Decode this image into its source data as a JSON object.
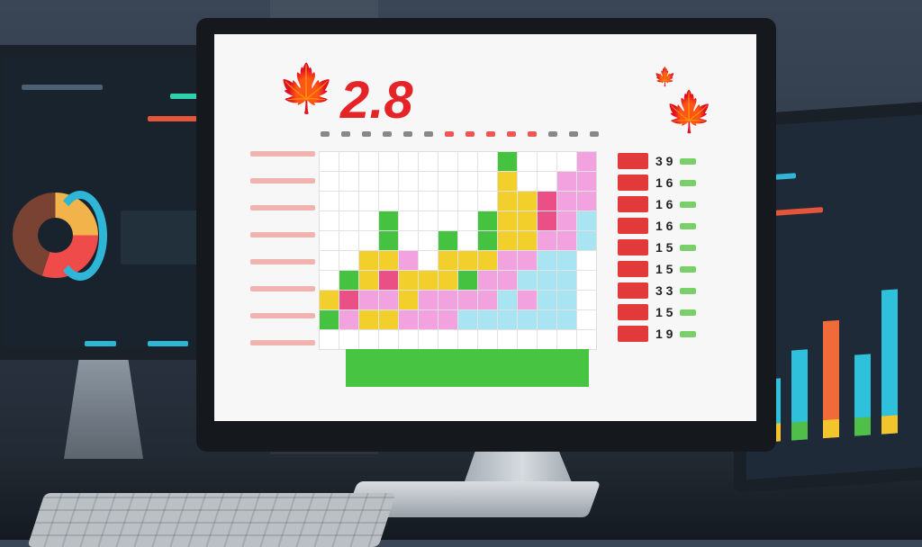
{
  "scene": "three monitors on a desk",
  "center_monitor": {
    "headline_value": "2.8",
    "grid_colors": {
      "w": "#ffffff",
      "g": "#45c23f",
      "y": "#f3cf2b",
      "p": "#f2a3df",
      "r": "#ea4f86",
      "b": "#a9e4f2"
    },
    "grid_rows": [
      "wwwwwwwwwgwwwp",
      "wwwwwwwwwywwpp",
      "wwwwwwwwwyyrpp",
      "wwwgwwwwgyyrpb",
      "wwwgwwgwgyyppb",
      "wwyypwyyyppbbw",
      "wgyryyygppbbbw",
      "yrppyppppbpbbw",
      "gpyypppbbbbbbw",
      "wwwwwwwwwwwwww"
    ],
    "side_values": [
      "3 9",
      "1 6",
      "1 6",
      "1 6",
      "1 5",
      "1 5",
      "3 3",
      "1 5",
      "1 9"
    ],
    "accent": "#e42426"
  },
  "left_monitor": {
    "donut_colors": [
      "#f2b44a",
      "#ef4b4b",
      "#7a4232"
    ],
    "arc_color": "#2fb6d6"
  },
  "right_monitor": {
    "bar_colors": [
      "#2fc0dc",
      "#f06a3a",
      "#f2c52c",
      "#4fbf4a"
    ]
  }
}
